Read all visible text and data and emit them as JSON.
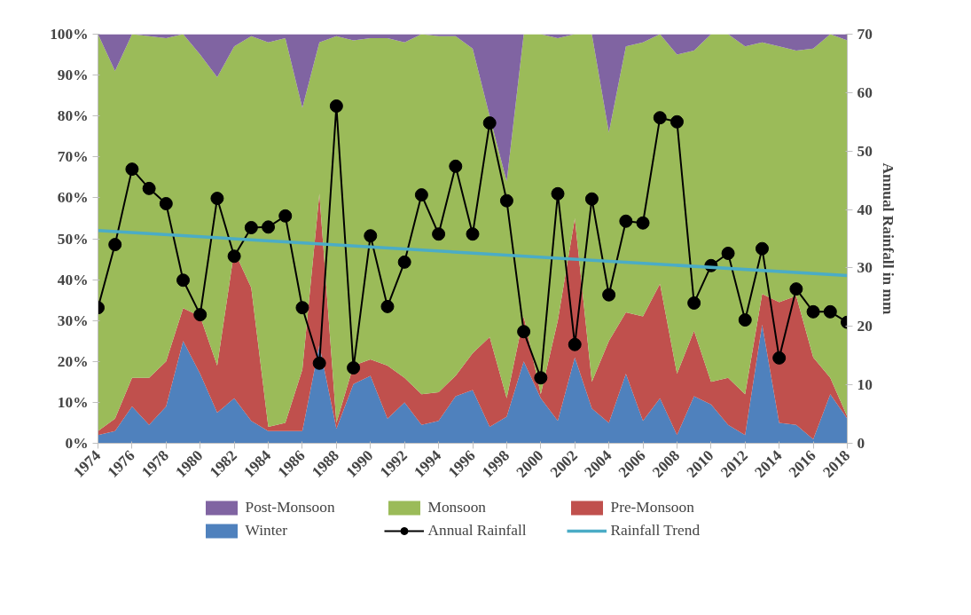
{
  "chart_data": {
    "type": "area",
    "stacked": true,
    "x": [
      1974,
      1975,
      1976,
      1977,
      1978,
      1979,
      1980,
      1981,
      1982,
      1983,
      1984,
      1985,
      1986,
      1987,
      1988,
      1989,
      1990,
      1991,
      1992,
      1993,
      1994,
      1995,
      1996,
      1997,
      1998,
      1999,
      2000,
      2001,
      2002,
      2003,
      2004,
      2005,
      2006,
      2007,
      2008,
      2009,
      2010,
      2011,
      2012,
      2013,
      2014,
      2015,
      2016,
      2017,
      2018
    ],
    "series": [
      {
        "name": "Winter",
        "color": "#4f81bd",
        "values": [
          2,
          3,
          9,
          4.5,
          9,
          25,
          17,
          7.5,
          11,
          5.5,
          3,
          3,
          3,
          24,
          3.5,
          14.5,
          16.5,
          6,
          10,
          4.5,
          5.5,
          11.5,
          13,
          4,
          6.5,
          20,
          11,
          5.5,
          21,
          8.5,
          5,
          17,
          5.5,
          11,
          2,
          11.5,
          9.5,
          4.5,
          2,
          29,
          5,
          4.5,
          1,
          12,
          6
        ]
      },
      {
        "name": "Pre-Monsoon",
        "color": "#c0504d",
        "values": [
          1,
          3,
          7,
          11.5,
          11,
          8,
          14,
          11.5,
          36,
          32.5,
          1,
          2,
          15,
          37,
          1.5,
          4.5,
          4,
          13,
          6,
          7.5,
          7,
          5,
          9,
          22,
          4.5,
          11,
          1,
          24.5,
          34,
          6.5,
          20,
          15,
          25.5,
          28,
          15,
          16,
          5.5,
          11.5,
          10,
          7.5,
          29.5,
          31.5,
          20,
          4,
          0.5
        ]
      },
      {
        "name": "Monsoon",
        "color": "#9bbb59",
        "values": [
          97,
          85,
          84,
          83.5,
          79,
          67,
          64,
          70.5,
          50,
          61.5,
          94,
          94,
          64,
          37,
          94.5,
          79.5,
          78.5,
          80,
          82,
          88,
          87,
          83,
          74.5,
          54,
          53,
          69,
          88,
          69,
          45,
          85,
          51,
          65,
          67,
          61,
          78,
          68.5,
          85,
          84,
          85,
          61.5,
          62.5,
          60,
          75.5,
          84,
          92
        ]
      },
      {
        "name": "Post-Monsoon",
        "color": "#8064a2",
        "values": [
          0,
          9,
          0,
          0.5,
          1,
          0,
          5,
          10.5,
          3,
          0.5,
          2,
          1,
          18,
          2,
          0.5,
          1.5,
          1,
          1,
          2,
          0,
          0.5,
          0.5,
          3.5,
          20,
          36,
          0,
          0,
          1,
          0,
          0,
          24,
          3,
          2,
          0,
          5,
          4,
          0,
          0,
          3,
          2,
          3,
          4,
          3.5,
          0,
          1.5
        ]
      },
      {
        "name": "Annual Rainfall",
        "type": "line",
        "axis": "y2",
        "color": "#000000",
        "marker": "circle",
        "values": [
          23.2,
          34.0,
          46.9,
          43.6,
          41.0,
          27.9,
          22.0,
          41.9,
          32.0,
          36.9,
          37.0,
          38.9,
          23.2,
          13.7,
          57.7,
          12.9,
          35.5,
          23.4,
          31.0,
          42.5,
          35.8,
          47.4,
          35.8,
          54.8,
          41.5,
          19.1,
          11.2,
          42.7,
          16.9,
          41.8,
          25.4,
          38.0,
          37.7,
          55.7,
          55.0,
          24.0,
          30.4,
          32.5,
          21.1,
          33.3,
          14.6,
          26.4,
          22.5,
          22.5,
          20.7
        ]
      },
      {
        "name": "Rainfall Trend",
        "type": "line",
        "axis": "y2",
        "color": "#4bacc6",
        "x": [
          1974,
          2018
        ],
        "values": [
          36.4,
          28.7
        ]
      }
    ],
    "xlim": [
      1974,
      2018
    ],
    "xticks": [
      1974,
      1976,
      1978,
      1980,
      1982,
      1984,
      1986,
      1988,
      1990,
      1992,
      1994,
      1996,
      1998,
      2000,
      2002,
      2004,
      2006,
      2008,
      2010,
      2012,
      2014,
      2016,
      2018
    ],
    "ylim": [
      0,
      100
    ],
    "yticks": [
      {
        "value": 0,
        "label": "0%"
      },
      {
        "value": 10,
        "label": "10%"
      },
      {
        "value": 20,
        "label": "20%"
      },
      {
        "value": 30,
        "label": "30%"
      },
      {
        "value": 40,
        "label": "40%"
      },
      {
        "value": 50,
        "label": "50%"
      },
      {
        "value": 60,
        "label": "60%"
      },
      {
        "value": 70,
        "label": "70%"
      },
      {
        "value": 80,
        "label": "80%"
      },
      {
        "value": 90,
        "label": "90%"
      },
      {
        "value": 100,
        "label": "100%"
      }
    ],
    "y2lim": [
      0,
      70
    ],
    "y2ticks": [
      0,
      10,
      20,
      30,
      40,
      50,
      60,
      70
    ],
    "y2label": "Annual Rainfall in mm",
    "legend": "bottom",
    "grid": false
  }
}
